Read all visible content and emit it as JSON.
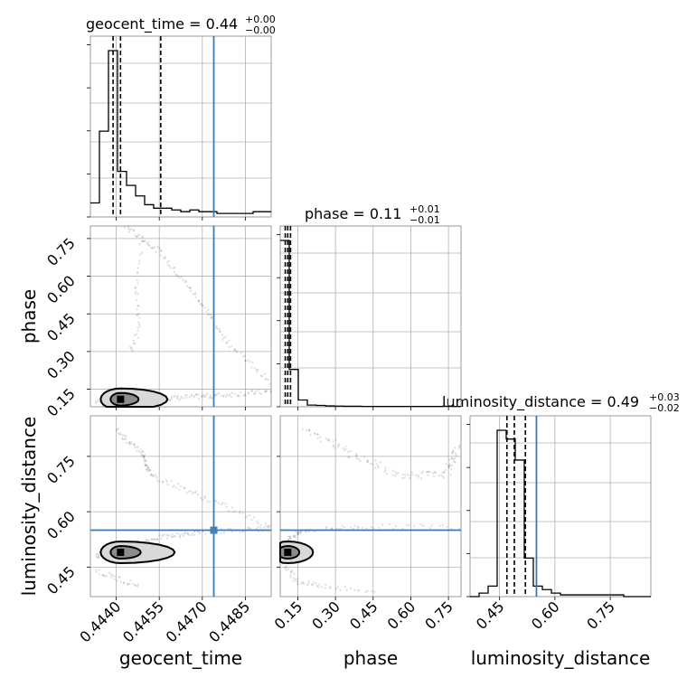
{
  "chart_data": {
    "type": "corner",
    "parameters": [
      {
        "name": "geocent_time",
        "title": {
          "main": "geocent_time = 0.44",
          "sup": "+0.00",
          "sub": "−0.00"
        },
        "range": [
          0.4431,
          0.4494
        ],
        "ticks": [
          0.444,
          0.4455,
          0.447,
          0.4485
        ],
        "tick_labels": [
          "0.4440",
          "0.4455",
          "0.4470",
          "0.4485"
        ],
        "quantiles": [
          0.44389,
          0.44415,
          0.44555
        ],
        "truth": 0.4474,
        "hist_edges_count": 20,
        "hist_values": [
          0.08,
          0.49,
          0.95,
          0.26,
          0.18,
          0.12,
          0.07,
          0.05,
          0.05,
          0.04,
          0.03,
          0.04,
          0.03,
          0.03,
          0.02,
          0.02,
          0.02,
          0.02,
          0.03,
          0.03
        ]
      },
      {
        "name": "phase",
        "title": {
          "main": "phase = 0.11",
          "sup": "+0.01",
          "sub": "−0.01"
        },
        "range": [
          0.08,
          0.8
        ],
        "ticks": [
          0.15,
          0.3,
          0.45,
          0.6,
          0.75
        ],
        "tick_labels": [
          "0.15",
          "0.30",
          "0.45",
          "0.60",
          "0.75"
        ],
        "quantiles": [
          0.1,
          0.11,
          0.121
        ],
        "truth": null,
        "hist_edges_count": 20,
        "hist_values": [
          0.98,
          0.22,
          0.04,
          0.01,
          0.008,
          0.005,
          0.004,
          0.003,
          0.003,
          0.002,
          0.002,
          0.002,
          0.002,
          0.002,
          0.002,
          0.002,
          0.002,
          0.002,
          0.003,
          0.002
        ]
      },
      {
        "name": "luminosity_distance",
        "title": {
          "main": "luminosity_distance = 0.49",
          "sup": "+0.03",
          "sub": "−0.02"
        },
        "range": [
          0.37,
          0.86
        ],
        "ticks": [
          0.45,
          0.6,
          0.75
        ],
        "tick_labels": [
          "0.45",
          "0.60",
          "0.75"
        ],
        "quantiles": [
          0.47,
          0.49,
          0.52
        ],
        "truth": 0.55,
        "hist_edges_count": 20,
        "hist_values": [
          0.0,
          0.02,
          0.06,
          0.95,
          0.9,
          0.78,
          0.22,
          0.06,
          0.04,
          0.02,
          0.01,
          0.01,
          0.01,
          0.01,
          0.01,
          0.01,
          0.01,
          0.0,
          0.0,
          0.0
        ]
      }
    ],
    "grid": true,
    "truth_color": "#3b78b4",
    "point_color": "#4a7fb5",
    "line_color": "#000000",
    "frame_color": "#9a9a9a",
    "grid_color": "#b0b0b0"
  }
}
